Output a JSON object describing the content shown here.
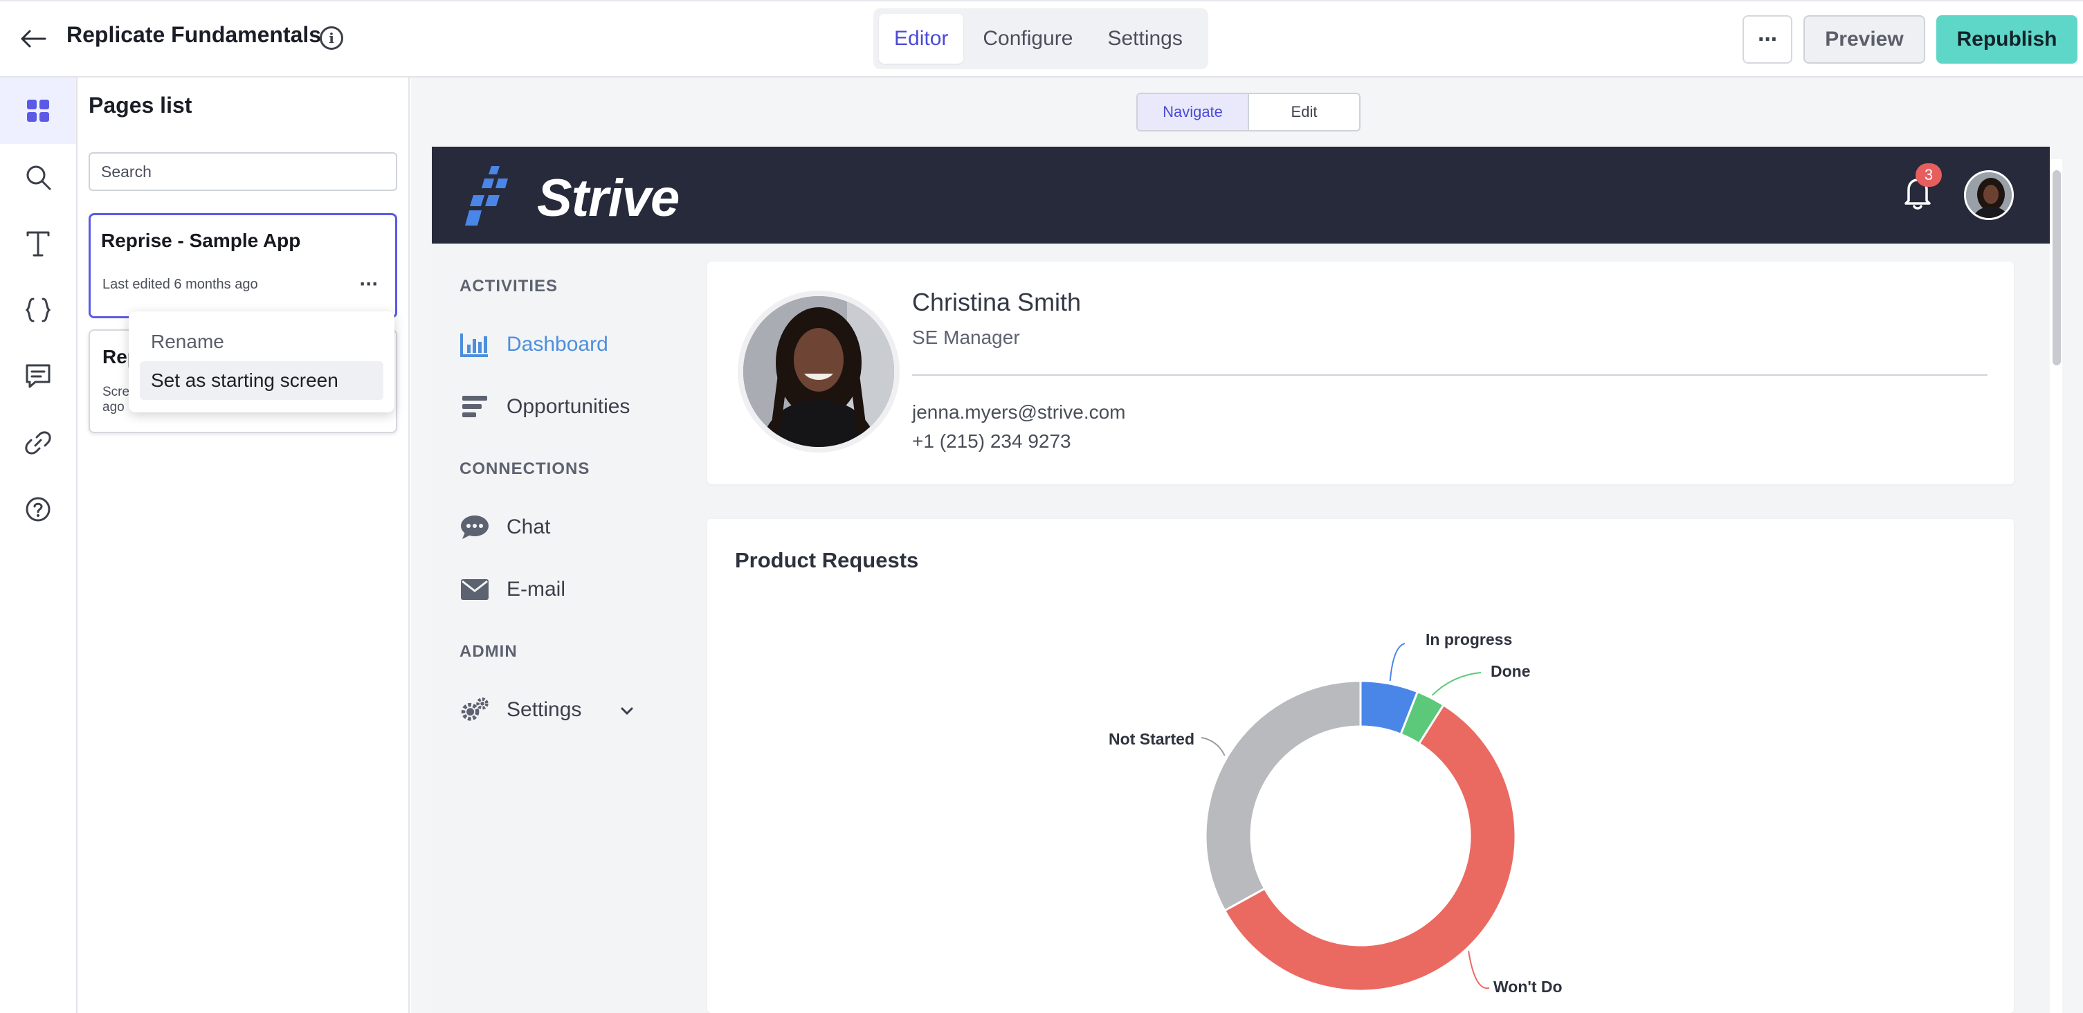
{
  "header": {
    "title": "Replicate Fundamentals",
    "info_icon": "i",
    "tabs": [
      {
        "label": "Editor",
        "active": true
      },
      {
        "label": "Configure",
        "active": false
      },
      {
        "label": "Settings",
        "active": false
      }
    ],
    "more_label": "···",
    "preview_label": "Preview",
    "republish_label": "Republish",
    "accent_color": "#5fd7c8",
    "active_tab_color": "#4b4ad8"
  },
  "rail": {
    "items": [
      {
        "icon": "pages-grid-icon",
        "active": true
      },
      {
        "icon": "search-icon",
        "active": false
      },
      {
        "icon": "text-icon",
        "active": false
      },
      {
        "icon": "code-braces-icon",
        "active": false
      },
      {
        "icon": "comment-icon",
        "active": false
      },
      {
        "icon": "link-icon",
        "active": false
      },
      {
        "icon": "help-icon",
        "active": false
      }
    ]
  },
  "pages_panel": {
    "title": "Pages list",
    "search_placeholder": "Search",
    "cards": [
      {
        "title": "Reprise - Sample App",
        "meta": "Last edited 6 months ago",
        "selected": true
      },
      {
        "title": "Rep",
        "meta_line1": "Scre",
        "meta_line2": "ago",
        "selected": false
      }
    ],
    "context_menu": {
      "items": [
        "Rename",
        "Set as starting screen"
      ],
      "hovered_index": 1
    }
  },
  "canvas": {
    "view_toggle": [
      "Navigate",
      "Edit"
    ],
    "active_view": "Navigate"
  },
  "app": {
    "brand": "Strive",
    "header_color": "#262a3a",
    "notification_count": "3",
    "sidebar": {
      "sections": [
        {
          "label": "ACTIVITIES",
          "items": [
            {
              "label": "Dashboard",
              "icon": "bar-chart-icon",
              "active": true
            },
            {
              "label": "Opportunities",
              "icon": "list-bars-icon",
              "active": false
            }
          ]
        },
        {
          "label": "CONNECTIONS",
          "items": [
            {
              "label": "Chat",
              "icon": "chat-bubble-icon",
              "active": false
            },
            {
              "label": "E-mail",
              "icon": "envelope-icon",
              "active": false
            }
          ]
        },
        {
          "label": "ADMIN",
          "items": [
            {
              "label": "Settings",
              "icon": "gears-icon",
              "active": false,
              "expandable": true
            }
          ]
        }
      ]
    },
    "profile": {
      "name": "Christina Smith",
      "role": "SE Manager",
      "email": "jenna.myers@strive.com",
      "phone": "+1 (215) 234 9273"
    },
    "chart_title": "Product Requests"
  },
  "chart_data": {
    "type": "pie",
    "variant": "donut",
    "title": "Product Requests",
    "categories": [
      "In progress",
      "Done",
      "Won't Do",
      "Not Started"
    ],
    "values": [
      6,
      3,
      58,
      33
    ],
    "colors": [
      "#4a86e8",
      "#5cc97a",
      "#ea6a62",
      "#b8babe"
    ],
    "legend": "none",
    "labels": "outside with leader lines"
  }
}
